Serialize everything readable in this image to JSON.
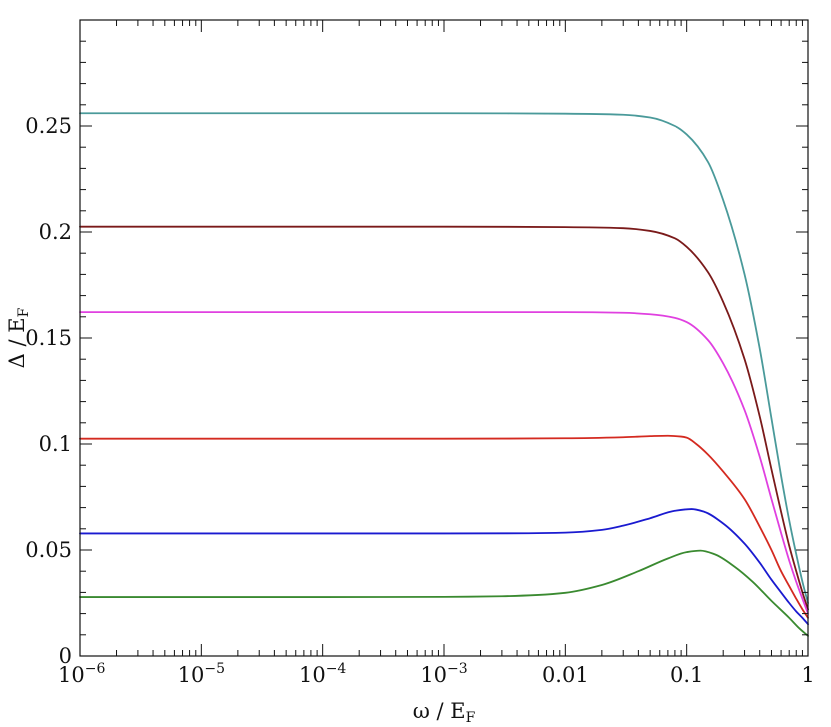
{
  "chart_data": {
    "type": "line",
    "title": "",
    "xlabel": "ω / E",
    "xlabel_sub": "F",
    "ylabel": "Δ / E",
    "ylabel_sub": "F",
    "x_scale": "log",
    "xlim": [
      1e-06,
      1
    ],
    "ylim": [
      0,
      0.3
    ],
    "grid": false,
    "legend": "none",
    "x_ticks": [
      {
        "value": 1e-06,
        "base": "10",
        "exp": "−6"
      },
      {
        "value": 1e-05,
        "base": "10",
        "exp": "−5"
      },
      {
        "value": 0.0001,
        "base": "10",
        "exp": "−4"
      },
      {
        "value": 0.001,
        "base": "10",
        "exp": "−3"
      },
      {
        "value": 0.01,
        "base": "0.01",
        "exp": ""
      },
      {
        "value": 0.1,
        "base": "0.1",
        "exp": ""
      },
      {
        "value": 1,
        "base": "1",
        "exp": ""
      }
    ],
    "y_ticks": [
      {
        "value": 0,
        "label": "0"
      },
      {
        "value": 0.05,
        "label": "0.05"
      },
      {
        "value": 0.1,
        "label": "0.1"
      },
      {
        "value": 0.15,
        "label": "0.15"
      },
      {
        "value": 0.2,
        "label": "0.2"
      },
      {
        "value": 0.25,
        "label": "0.25"
      }
    ],
    "series": [
      {
        "color": "#4a9a9a",
        "points": [
          [
            1e-06,
            0.256
          ],
          [
            0.001,
            0.256
          ],
          [
            0.01,
            0.2558
          ],
          [
            0.03,
            0.2553
          ],
          [
            0.05,
            0.254
          ],
          [
            0.08,
            0.25
          ],
          [
            0.1,
            0.246
          ],
          [
            0.15,
            0.233
          ],
          [
            0.2,
            0.215
          ],
          [
            0.3,
            0.18
          ],
          [
            0.4,
            0.145
          ],
          [
            0.5,
            0.112
          ],
          [
            0.6,
            0.085
          ],
          [
            0.7,
            0.064
          ],
          [
            0.8,
            0.048
          ],
          [
            0.9,
            0.035
          ],
          [
            1,
            0.025
          ]
        ]
      },
      {
        "color": "#7a1a1a",
        "points": [
          [
            1e-06,
            0.2025
          ],
          [
            0.001,
            0.2025
          ],
          [
            0.01,
            0.2023
          ],
          [
            0.03,
            0.2018
          ],
          [
            0.05,
            0.2005
          ],
          [
            0.08,
            0.197
          ],
          [
            0.1,
            0.193
          ],
          [
            0.15,
            0.181
          ],
          [
            0.2,
            0.167
          ],
          [
            0.3,
            0.14
          ],
          [
            0.4,
            0.113
          ],
          [
            0.5,
            0.088
          ],
          [
            0.6,
            0.068
          ],
          [
            0.7,
            0.052
          ],
          [
            0.8,
            0.04
          ],
          [
            0.9,
            0.03
          ],
          [
            1,
            0.022
          ]
        ]
      },
      {
        "color": "#e040e0",
        "points": [
          [
            1e-06,
            0.1622
          ],
          [
            0.001,
            0.1622
          ],
          [
            0.01,
            0.1622
          ],
          [
            0.03,
            0.1619
          ],
          [
            0.05,
            0.1612
          ],
          [
            0.08,
            0.1595
          ],
          [
            0.1,
            0.1575
          ],
          [
            0.15,
            0.149
          ],
          [
            0.2,
            0.138
          ],
          [
            0.3,
            0.116
          ],
          [
            0.4,
            0.094
          ],
          [
            0.5,
            0.074
          ],
          [
            0.6,
            0.058
          ],
          [
            0.7,
            0.045
          ],
          [
            0.8,
            0.035
          ],
          [
            0.9,
            0.027
          ],
          [
            1,
            0.02
          ]
        ]
      },
      {
        "color": "#d42a20",
        "points": [
          [
            1e-06,
            0.1025
          ],
          [
            0.001,
            0.1025
          ],
          [
            0.01,
            0.1027
          ],
          [
            0.03,
            0.1032
          ],
          [
            0.05,
            0.1037
          ],
          [
            0.07,
            0.1039
          ],
          [
            0.09,
            0.1035
          ],
          [
            0.1,
            0.103
          ],
          [
            0.12,
            0.1
          ],
          [
            0.15,
            0.095
          ],
          [
            0.2,
            0.087
          ],
          [
            0.3,
            0.074
          ],
          [
            0.4,
            0.061
          ],
          [
            0.5,
            0.05
          ],
          [
            0.6,
            0.04
          ],
          [
            0.7,
            0.033
          ],
          [
            0.8,
            0.027
          ],
          [
            0.9,
            0.022
          ],
          [
            1,
            0.018
          ]
        ]
      },
      {
        "color": "#1a1ad0",
        "points": [
          [
            1e-06,
            0.0578
          ],
          [
            0.001,
            0.0578
          ],
          [
            0.005,
            0.0579
          ],
          [
            0.01,
            0.0582
          ],
          [
            0.02,
            0.0595
          ],
          [
            0.03,
            0.0615
          ],
          [
            0.05,
            0.065
          ],
          [
            0.08,
            0.0685
          ],
          [
            0.11,
            0.0693
          ],
          [
            0.14,
            0.068
          ],
          [
            0.2,
            0.0625
          ],
          [
            0.3,
            0.053
          ],
          [
            0.4,
            0.044
          ],
          [
            0.5,
            0.036
          ],
          [
            0.6,
            0.03
          ],
          [
            0.7,
            0.025
          ],
          [
            0.8,
            0.021
          ],
          [
            0.9,
            0.018
          ],
          [
            1,
            0.015
          ]
        ]
      },
      {
        "color": "#3a8a30",
        "points": [
          [
            1e-06,
            0.0278
          ],
          [
            0.0001,
            0.0278
          ],
          [
            0.001,
            0.0279
          ],
          [
            0.003,
            0.0282
          ],
          [
            0.006,
            0.0288
          ],
          [
            0.01,
            0.0298
          ],
          [
            0.02,
            0.0335
          ],
          [
            0.04,
            0.04
          ],
          [
            0.07,
            0.046
          ],
          [
            0.1,
            0.049
          ],
          [
            0.13,
            0.0497
          ],
          [
            0.17,
            0.048
          ],
          [
            0.25,
            0.042
          ],
          [
            0.35,
            0.035
          ],
          [
            0.5,
            0.026
          ],
          [
            0.7,
            0.018
          ],
          [
            0.85,
            0.013
          ],
          [
            1,
            0.0095
          ]
        ]
      }
    ]
  }
}
